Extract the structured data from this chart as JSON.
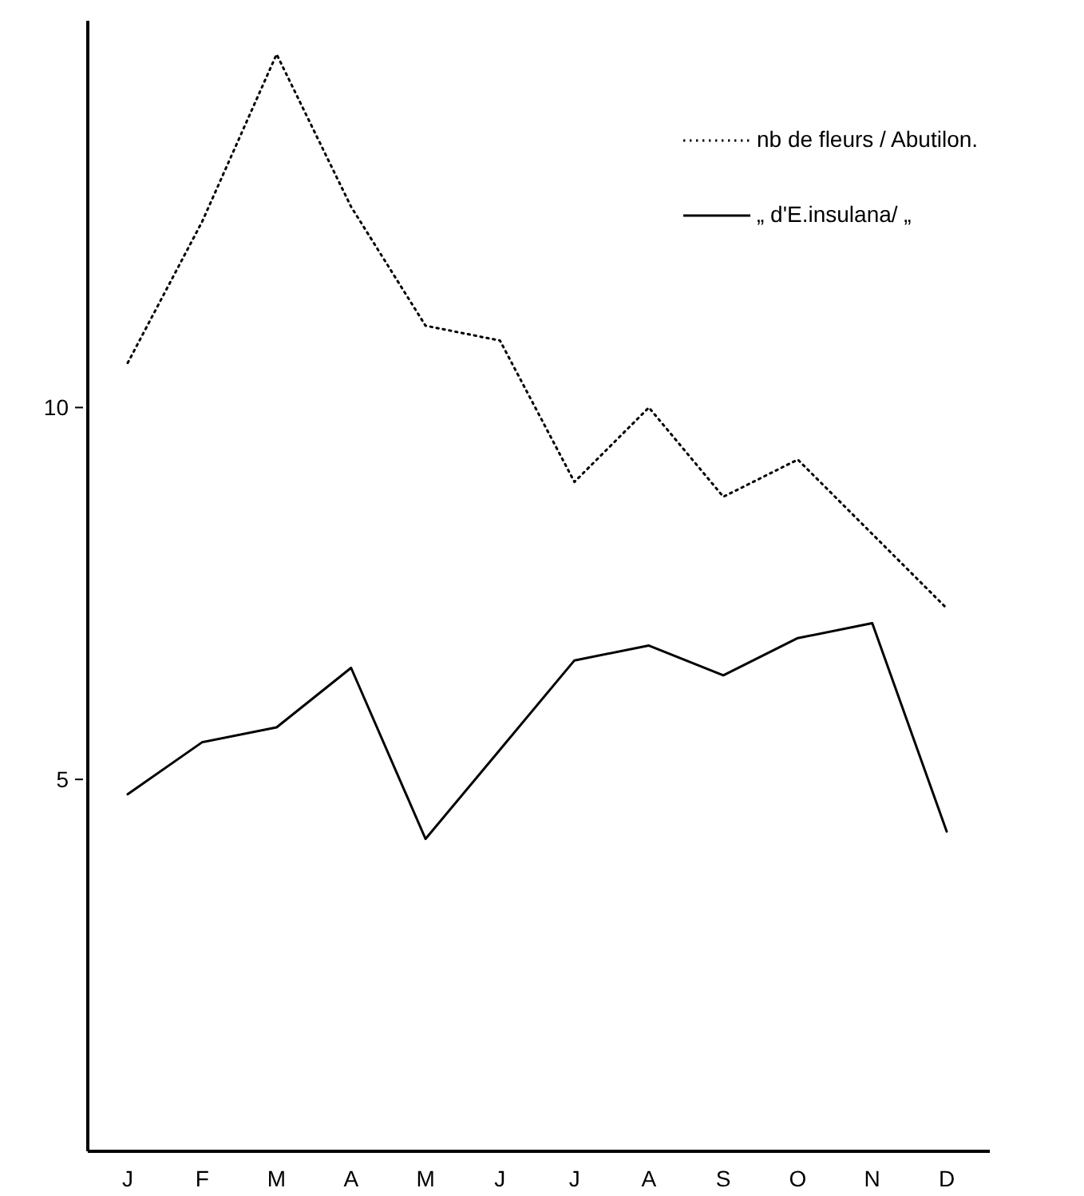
{
  "chart_data": {
    "type": "line",
    "categories": [
      "J",
      "F",
      "M",
      "A",
      "M",
      "J",
      "J",
      "A",
      "S",
      "O",
      "N",
      "D"
    ],
    "series": [
      {
        "name": "nb de fleurs / Abutilon.",
        "color": "#000000",
        "line_style": "dotted",
        "values": [
          10.6,
          12.5,
          14.75,
          12.7,
          11.1,
          10.9,
          9.0,
          10.0,
          8.8,
          9.3,
          8.3,
          7.3
        ]
      },
      {
        "name": "„ d'E.insulana/ „",
        "color": "#000000",
        "line_style": "solid",
        "values": [
          4.8,
          5.5,
          5.7,
          6.5,
          4.2,
          5.4,
          6.6,
          6.8,
          6.4,
          6.9,
          7.1,
          4.3
        ]
      }
    ],
    "ylim": [
      0,
      15.2
    ],
    "yticks": [
      5,
      10
    ],
    "grid": false,
    "legend": "top right",
    "marker": "none"
  }
}
